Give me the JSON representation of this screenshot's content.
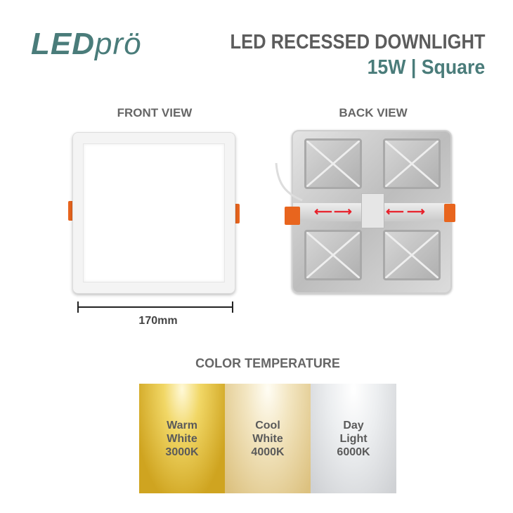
{
  "brand": {
    "logo_bold": "LED",
    "logo_light": "prö"
  },
  "header": {
    "title": "LED RECESSED DOWNLIGHT",
    "subtitle": "15W | Square"
  },
  "views": {
    "front_label": "FRONT VIEW",
    "back_label": "BACK VIEW",
    "dimension": "170mm"
  },
  "color_temperature": {
    "heading": "COLOR TEMPERATURE",
    "swatches": [
      {
        "line1": "Warm",
        "line2": "White",
        "kelvin": "3000K",
        "color": "#d9b53a"
      },
      {
        "line1": "Cool",
        "line2": "White",
        "kelvin": "4000K",
        "color": "#ecdcae"
      },
      {
        "line1": "Day",
        "line2": "Light",
        "kelvin": "6000K",
        "color": "#e6e7e9"
      }
    ]
  },
  "colors": {
    "brand_teal": "#4a7c7a",
    "title_grey": "#5c5c5c",
    "clip_orange": "#e8651e",
    "arrow_red": "#e8202a"
  }
}
